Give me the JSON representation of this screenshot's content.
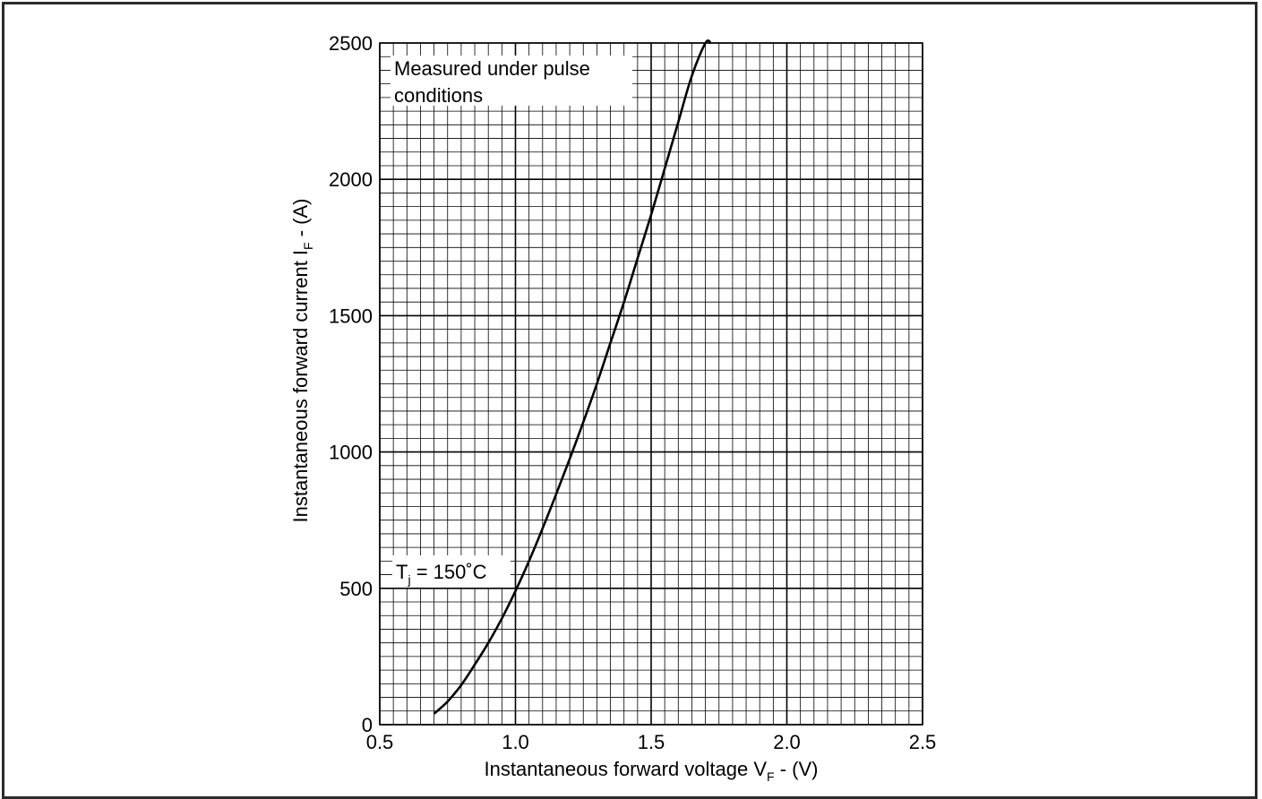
{
  "chart_data": {
    "type": "line",
    "title": "",
    "xlabel": {
      "main": "Instantaneous forward voltage V",
      "sub": "F",
      "unit": " - (V)"
    },
    "ylabel": {
      "main": "Instantaneous forward current I",
      "sub": "F",
      "unit": " - (A)"
    },
    "xlim": [
      0.5,
      2.5
    ],
    "ylim": [
      0,
      2500
    ],
    "x_ticks": [
      "0.5",
      "1.0",
      "1.5",
      "2.0",
      "2.5"
    ],
    "y_ticks": [
      "0",
      "500",
      "1000",
      "1500",
      "2000",
      "2500"
    ],
    "x_tick_values": [
      0.5,
      1.0,
      1.5,
      2.0,
      2.5
    ],
    "y_tick_values": [
      0,
      500,
      1000,
      1500,
      2000,
      2500
    ],
    "grid": true,
    "grid_minor": {
      "x_per_major": 10,
      "y_per_major": 10
    },
    "series": [
      {
        "color": "#000000",
        "x": [
          0.7,
          0.75,
          0.8,
          0.85,
          0.9,
          0.95,
          1.0,
          1.05,
          1.1,
          1.15,
          1.2,
          1.25,
          1.3,
          1.35,
          1.4,
          1.45,
          1.5,
          1.55,
          1.6,
          1.65,
          1.7,
          1.72
        ],
        "y": [
          40,
          85,
          145,
          220,
          300,
          390,
          490,
          600,
          720,
          845,
          975,
          1110,
          1250,
          1400,
          1550,
          1710,
          1870,
          2040,
          2210,
          2380,
          2500,
          2500
        ]
      }
    ],
    "annotations": [
      {
        "text_line1": "Measured under pulse",
        "text_line2": "conditions"
      },
      {
        "main": "T",
        "sub": "j",
        "rest": " = 150˚C"
      }
    ]
  }
}
